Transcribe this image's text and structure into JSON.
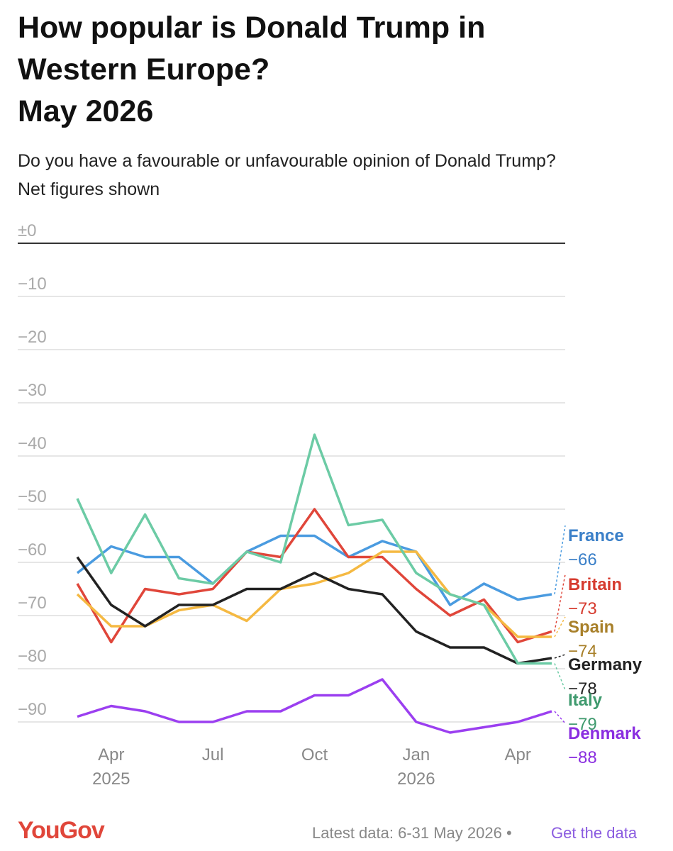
{
  "chart_data": {
    "type": "line",
    "title_lines": [
      "How popular is Donald Trump in",
      "Western Europe?",
      "May 2026"
    ],
    "subtitle_lines": [
      "Do you have a favourable or unfavourable opinion of Donald Trump?",
      "Net figures shown"
    ],
    "categories": [
      null,
      "Apr",
      null,
      null,
      "Jul",
      null,
      null,
      "Oct",
      null,
      null,
      "Jan",
      null,
      null,
      "Apr",
      null
    ],
    "category_years": [
      null,
      "2025",
      null,
      null,
      null,
      null,
      null,
      null,
      null,
      null,
      "2026",
      null,
      null,
      null,
      null
    ],
    "ylim": [
      0,
      -90
    ],
    "yticks": [
      {
        "value": 0,
        "label": "±0"
      },
      {
        "value": -10,
        "label": "−10"
      },
      {
        "value": -20,
        "label": "−20"
      },
      {
        "value": -30,
        "label": "−30"
      },
      {
        "value": -40,
        "label": "−40"
      },
      {
        "value": -50,
        "label": "−50"
      },
      {
        "value": -60,
        "label": "−60"
      },
      {
        "value": -70,
        "label": "−70"
      },
      {
        "value": -80,
        "label": "−80"
      },
      {
        "value": -90,
        "label": "−90"
      }
    ],
    "grid": true,
    "series": [
      {
        "name": "France",
        "color": "#4a9be0",
        "label_color": "#3a7fc8",
        "values": [
          -62,
          -57,
          -59,
          -59,
          -64,
          -58,
          -55,
          -55,
          -59,
          -56,
          -58,
          -68,
          -64,
          -67,
          -66
        ],
        "value_labels": [
          null,
          null,
          null,
          null,
          null,
          null,
          null,
          null,
          null,
          null,
          null,
          null,
          null,
          null,
          "−66"
        ]
      },
      {
        "name": "Britain",
        "color": "#e0463a",
        "label_color": "#d63b2f",
        "values": [
          -64,
          -75,
          -65,
          -66,
          -65,
          -58,
          -59,
          -50,
          -59,
          -59,
          -65,
          -70,
          -67,
          -75,
          -73
        ],
        "value_labels": [
          null,
          null,
          null,
          null,
          null,
          null,
          null,
          null,
          null,
          null,
          null,
          null,
          null,
          null,
          "−73"
        ]
      },
      {
        "name": "Spain",
        "color": "#f5b942",
        "label_color": "#a8802a",
        "values": [
          -66,
          -72,
          -72,
          -69,
          -68,
          -71,
          -65,
          -64,
          -62,
          -58,
          -58,
          -66,
          -68,
          -74,
          -74
        ],
        "value_labels": [
          null,
          null,
          null,
          null,
          null,
          null,
          null,
          null,
          null,
          null,
          null,
          null,
          null,
          null,
          "−74"
        ]
      },
      {
        "name": "Germany",
        "color": "#222222",
        "label_color": "#222222",
        "values": [
          -59,
          -68,
          -72,
          -68,
          -68,
          -65,
          -65,
          -62,
          -65,
          -66,
          -73,
          -76,
          -76,
          -79,
          -78
        ],
        "value_labels": [
          null,
          null,
          null,
          null,
          null,
          null,
          null,
          null,
          null,
          null,
          null,
          null,
          null,
          null,
          "−78"
        ]
      },
      {
        "name": "Italy",
        "color": "#6ccba5",
        "label_color": "#3f9a6e",
        "values": [
          -48,
          -62,
          -51,
          -63,
          -64,
          -58,
          -60,
          -36,
          -53,
          -52,
          -62,
          -66,
          -68,
          -79,
          -79
        ],
        "value_labels": [
          null,
          null,
          null,
          null,
          null,
          null,
          null,
          null,
          null,
          null,
          null,
          null,
          null,
          null,
          "−79"
        ]
      },
      {
        "name": "Denmark",
        "color": "#9b3ff0",
        "label_color": "#8a2ee0",
        "values": [
          -89,
          -87,
          -88,
          -90,
          -90,
          -88,
          -88,
          -85,
          -85,
          -82,
          -90,
          -92,
          -91,
          -90,
          -88
        ],
        "value_labels": [
          null,
          null,
          null,
          null,
          null,
          null,
          null,
          null,
          null,
          null,
          null,
          null,
          null,
          null,
          "−88"
        ]
      }
    ]
  },
  "footer": {
    "brand": "YouGov",
    "note": "Latest data: 6-31 May 2026 •",
    "link": "Get the data"
  }
}
